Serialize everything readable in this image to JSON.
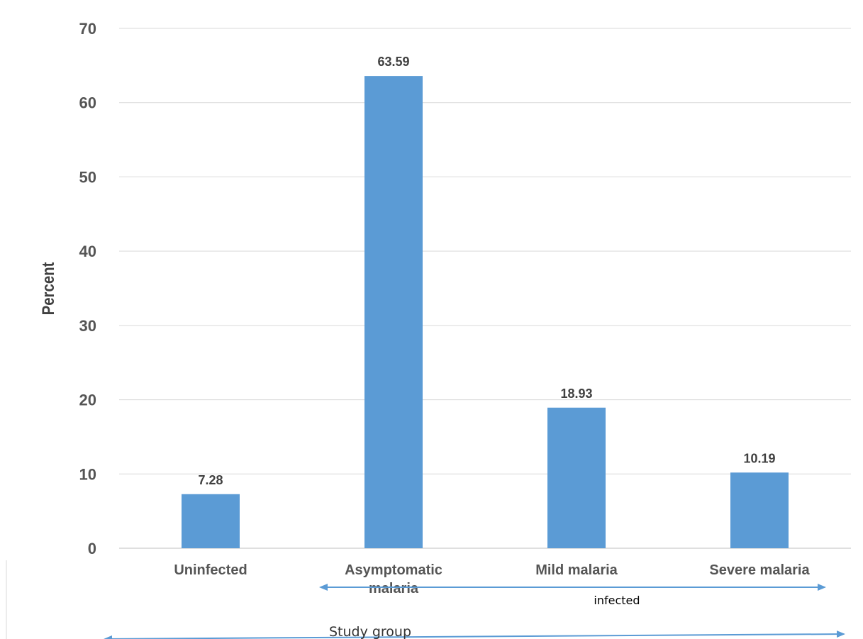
{
  "chart_data": {
    "type": "bar",
    "categories": [
      "Uninfected",
      "Asymptomatic malaria",
      "Mild malaria",
      "Severe malaria"
    ],
    "category_lines": [
      [
        "Uninfected"
      ],
      [
        "Asymptomatic",
        "malaria"
      ],
      [
        "Mild malaria"
      ],
      [
        "Severe malaria"
      ]
    ],
    "values": [
      7.28,
      63.59,
      18.93,
      10.19
    ],
    "data_labels": [
      "7.28",
      "63.59",
      "18.93",
      "10.19"
    ],
    "ylabel": "Percent",
    "xlabel": "",
    "ylim": [
      0,
      70
    ],
    "yticks": [
      0,
      10,
      20,
      30,
      40,
      50,
      60,
      70
    ],
    "grid": true,
    "legend": "none",
    "bar_color": "#5b9bd5",
    "annotations": {
      "infected": "infected",
      "study_group": "Study group",
      "arrow_color": "#5b9bd5"
    }
  }
}
